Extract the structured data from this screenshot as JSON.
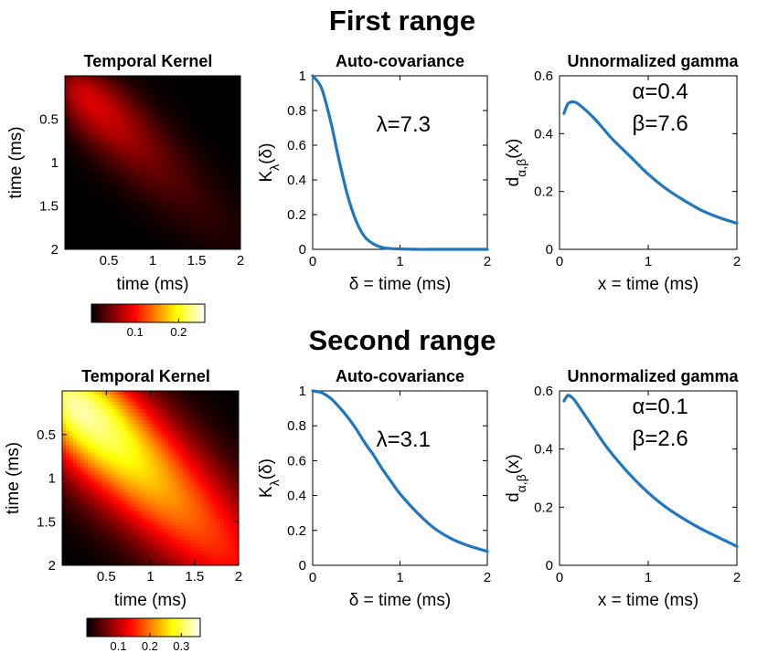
{
  "figure": {
    "colors": {
      "curve": "#1f77bf",
      "axis": "#000000",
      "background": "#ffffff"
    },
    "colormap": "hot"
  },
  "chart_data": [
    {
      "section_title": "First range",
      "panels": [
        {
          "type": "heatmap",
          "title": "Temporal Kernel",
          "xlabel": "time (ms)",
          "ylabel": "time (ms)",
          "xlim": [
            0,
            2
          ],
          "ylim": [
            0,
            2
          ],
          "y_reversed": true,
          "x_ticks": [
            "0.5",
            "1",
            "1.5",
            "2"
          ],
          "x_tick_values": [
            0.5,
            1,
            1.5,
            2
          ],
          "y_ticks": [
            "0.5",
            "1",
            "1.5",
            "2"
          ],
          "y_tick_values": [
            0.5,
            1,
            1.5,
            2
          ],
          "kernel": {
            "lambda": 7.3,
            "alpha": 0.4,
            "beta": 7.6
          },
          "colorbar": {
            "ticks": [
              "0.1",
              "0.2"
            ],
            "tick_values": [
              0.1,
              0.2
            ],
            "range": [
              0,
              0.26
            ]
          }
        },
        {
          "type": "line",
          "title": "Auto-covariance",
          "xlabel": "δ = time (ms)",
          "ylabel": "Kλ(δ)",
          "xlim": [
            0,
            2
          ],
          "ylim": [
            0,
            1
          ],
          "x_ticks": [
            "0",
            "1",
            "2"
          ],
          "x_tick_values": [
            0,
            1,
            2
          ],
          "y_ticks": [
            "0",
            "0.2",
            "0.4",
            "0.6",
            "0.8",
            "1"
          ],
          "y_tick_values": [
            0,
            0.2,
            0.4,
            0.6,
            0.8,
            1
          ],
          "annotation": "λ=7.3",
          "x": [
            0,
            0.1,
            0.2,
            0.3,
            0.4,
            0.5,
            0.6,
            0.7,
            0.8,
            0.9,
            1.0,
            1.2,
            1.4,
            1.6,
            1.8,
            2.0
          ],
          "y": [
            1.0,
            0.93,
            0.75,
            0.52,
            0.31,
            0.16,
            0.07,
            0.03,
            0.01,
            0.004,
            0.002,
            0,
            0,
            0,
            0,
            0
          ]
        },
        {
          "type": "line",
          "title": "Unnormalized gamma",
          "xlabel": "x = time (ms)",
          "ylabel": "dα,β(x)",
          "xlim": [
            0,
            2
          ],
          "ylim": [
            0,
            0.6
          ],
          "x_ticks": [
            "0",
            "1",
            "2"
          ],
          "x_tick_values": [
            0,
            1,
            2
          ],
          "y_ticks": [
            "0",
            "0.2",
            "0.4",
            "0.6"
          ],
          "y_tick_values": [
            0,
            0.2,
            0.4,
            0.6
          ],
          "annotation_lines": [
            "α=0.4",
            "β=7.6"
          ],
          "x": [
            0.05,
            0.08,
            0.1,
            0.15,
            0.2,
            0.3,
            0.4,
            0.5,
            0.6,
            0.8,
            1.0,
            1.2,
            1.4,
            1.6,
            1.8,
            2.0
          ],
          "y": [
            0.47,
            0.495,
            0.505,
            0.51,
            0.505,
            0.48,
            0.45,
            0.415,
            0.38,
            0.32,
            0.26,
            0.21,
            0.17,
            0.135,
            0.11,
            0.09
          ]
        }
      ]
    },
    {
      "section_title": "Second range",
      "panels": [
        {
          "type": "heatmap",
          "title": "Temporal Kernel",
          "xlabel": "time (ms)",
          "ylabel": "time (ms)",
          "xlim": [
            0,
            2
          ],
          "ylim": [
            0,
            2
          ],
          "y_reversed": true,
          "x_ticks": [
            "0.5",
            "1",
            "1.5",
            "2"
          ],
          "x_tick_values": [
            0.5,
            1,
            1.5,
            2
          ],
          "y_ticks": [
            "0.5",
            "1",
            "1.5",
            "2"
          ],
          "y_tick_values": [
            0.5,
            1,
            1.5,
            2
          ],
          "kernel": {
            "lambda": 3.1,
            "alpha": 0.1,
            "beta": 2.6
          },
          "colorbar": {
            "ticks": [
              "0.1",
              "0.2",
              "0.3"
            ],
            "tick_values": [
              0.1,
              0.2,
              0.3
            ],
            "range": [
              0,
              0.36
            ]
          }
        },
        {
          "type": "line",
          "title": "Auto-covariance",
          "xlabel": "δ = time (ms)",
          "ylabel": "Kλ(δ)",
          "xlim": [
            0,
            2
          ],
          "ylim": [
            0,
            1
          ],
          "x_ticks": [
            "0",
            "1",
            "2"
          ],
          "x_tick_values": [
            0,
            1,
            2
          ],
          "y_ticks": [
            "0",
            "0.2",
            "0.4",
            "0.6",
            "0.8",
            "1"
          ],
          "y_tick_values": [
            0,
            0.2,
            0.4,
            0.6,
            0.8,
            1
          ],
          "annotation": "λ=3.1",
          "x": [
            0,
            0.1,
            0.2,
            0.3,
            0.4,
            0.5,
            0.6,
            0.7,
            0.8,
            0.9,
            1.0,
            1.2,
            1.4,
            1.6,
            1.8,
            2.0
          ],
          "y": [
            1.0,
            0.99,
            0.96,
            0.91,
            0.85,
            0.78,
            0.7,
            0.63,
            0.55,
            0.48,
            0.41,
            0.3,
            0.21,
            0.15,
            0.11,
            0.08
          ]
        },
        {
          "type": "line",
          "title": "Unnormalized gamma",
          "xlabel": "x = time (ms)",
          "ylabel": "dα,β(x)",
          "xlim": [
            0,
            2
          ],
          "ylim": [
            0,
            0.6
          ],
          "x_ticks": [
            "0",
            "1",
            "2"
          ],
          "x_tick_values": [
            0,
            1,
            2
          ],
          "y_ticks": [
            "0",
            "0.2",
            "0.4",
            "0.6"
          ],
          "y_tick_values": [
            0,
            0.2,
            0.4,
            0.6
          ],
          "annotation_lines": [
            "α=0.1",
            "β=2.6"
          ],
          "x": [
            0.05,
            0.08,
            0.1,
            0.15,
            0.2,
            0.3,
            0.4,
            0.5,
            0.6,
            0.8,
            1.0,
            1.2,
            1.4,
            1.6,
            1.8,
            2.0
          ],
          "y": [
            0.565,
            0.58,
            0.585,
            0.575,
            0.555,
            0.51,
            0.465,
            0.42,
            0.38,
            0.31,
            0.25,
            0.2,
            0.16,
            0.125,
            0.095,
            0.065
          ]
        }
      ]
    }
  ]
}
